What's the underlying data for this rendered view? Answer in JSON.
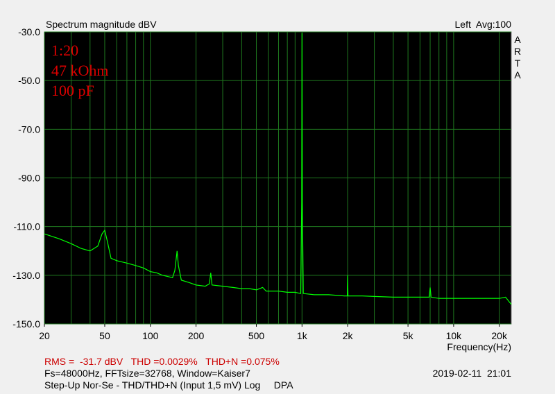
{
  "chart_data": {
    "type": "line",
    "title": "Spectrum magnitude dBV",
    "status": "Left  Avg:100",
    "logo": [
      "A",
      "R",
      "T",
      "A"
    ],
    "annotations": [
      "1:20",
      "47 kOhm",
      "100 pF"
    ],
    "xlabel": "Frequency(Hz)",
    "xscale": "log",
    "xlim": [
      20,
      24000
    ],
    "ylim": [
      -150,
      -30
    ],
    "xticks": [
      20,
      50,
      100,
      200,
      500,
      {
        "value": 1000,
        "label": "1k"
      },
      {
        "value": 2000,
        "label": "2k"
      },
      {
        "value": 5000,
        "label": "5k"
      },
      {
        "value": 10000,
        "label": "10k"
      },
      {
        "value": 20000,
        "label": "20k"
      }
    ],
    "xgrid": [
      20,
      30,
      40,
      50,
      60,
      70,
      80,
      90,
      100,
      200,
      300,
      400,
      500,
      600,
      700,
      800,
      900,
      1000,
      2000,
      3000,
      4000,
      5000,
      6000,
      7000,
      8000,
      9000,
      10000,
      20000
    ],
    "yticks": [
      {
        "value": -30,
        "label": "-30.0"
      },
      {
        "value": -50,
        "label": "-50.0"
      },
      {
        "value": -70,
        "label": "-70.0"
      },
      {
        "value": -90,
        "label": "-90.0"
      },
      {
        "value": -110,
        "label": "-110.0"
      },
      {
        "value": -130,
        "label": "-130.0"
      },
      {
        "value": -150,
        "label": "-150.0"
      }
    ],
    "grid": true,
    "x": [
      20,
      25,
      30,
      35,
      40,
      45,
      48,
      50,
      52,
      55,
      60,
      70,
      80,
      90,
      100,
      110,
      120,
      130,
      140,
      145,
      150,
      153,
      160,
      180,
      200,
      230,
      245,
      250,
      255,
      300,
      350,
      400,
      450,
      500,
      550,
      580,
      700,
      800,
      900,
      980,
      995,
      1000,
      1005,
      1020,
      1200,
      1500,
      1900,
      1990,
      2000,
      2010,
      2500,
      3000,
      4000,
      5000,
      6000,
      6900,
      7000,
      7100,
      8000,
      10000,
      15000,
      20000,
      22000,
      24000
    ],
    "series": [
      {
        "name": "Left",
        "color": "#00ff00",
        "values": [
          -113,
          -115,
          -117,
          -119,
          -120,
          -118,
          -113,
          -111.5,
          -116,
          -123,
          -124,
          -125,
          -126,
          -127,
          -128.5,
          -129,
          -130,
          -130.5,
          -131,
          -128,
          -120,
          -126,
          -132,
          -133,
          -134,
          -134.5,
          -133.5,
          -129,
          -134,
          -134.5,
          -135,
          -135.5,
          -135.5,
          -136,
          -135,
          -136.5,
          -136.5,
          -137,
          -137,
          -137.5,
          -100,
          -30.5,
          -100,
          -137.5,
          -138,
          -138,
          -138.5,
          -138.5,
          -130,
          -138.5,
          -138.5,
          -138.7,
          -139,
          -139,
          -139,
          -139,
          -135,
          -139,
          -139.5,
          -139.5,
          -139.5,
          -139.5,
          -139,
          -142
        ]
      }
    ],
    "footer": {
      "measure": "RMS =  -31.7 dBV   THD =0.0029%   THD+N =0.075%",
      "settings": "Fs=48000Hz, FFTsize=32768, Window=Kaiser7",
      "date": "2019-02-11  21:01",
      "description": "Step-Up Nor-Se - THD/THD+N (Input 1,5 mV) Log     DPA"
    }
  }
}
